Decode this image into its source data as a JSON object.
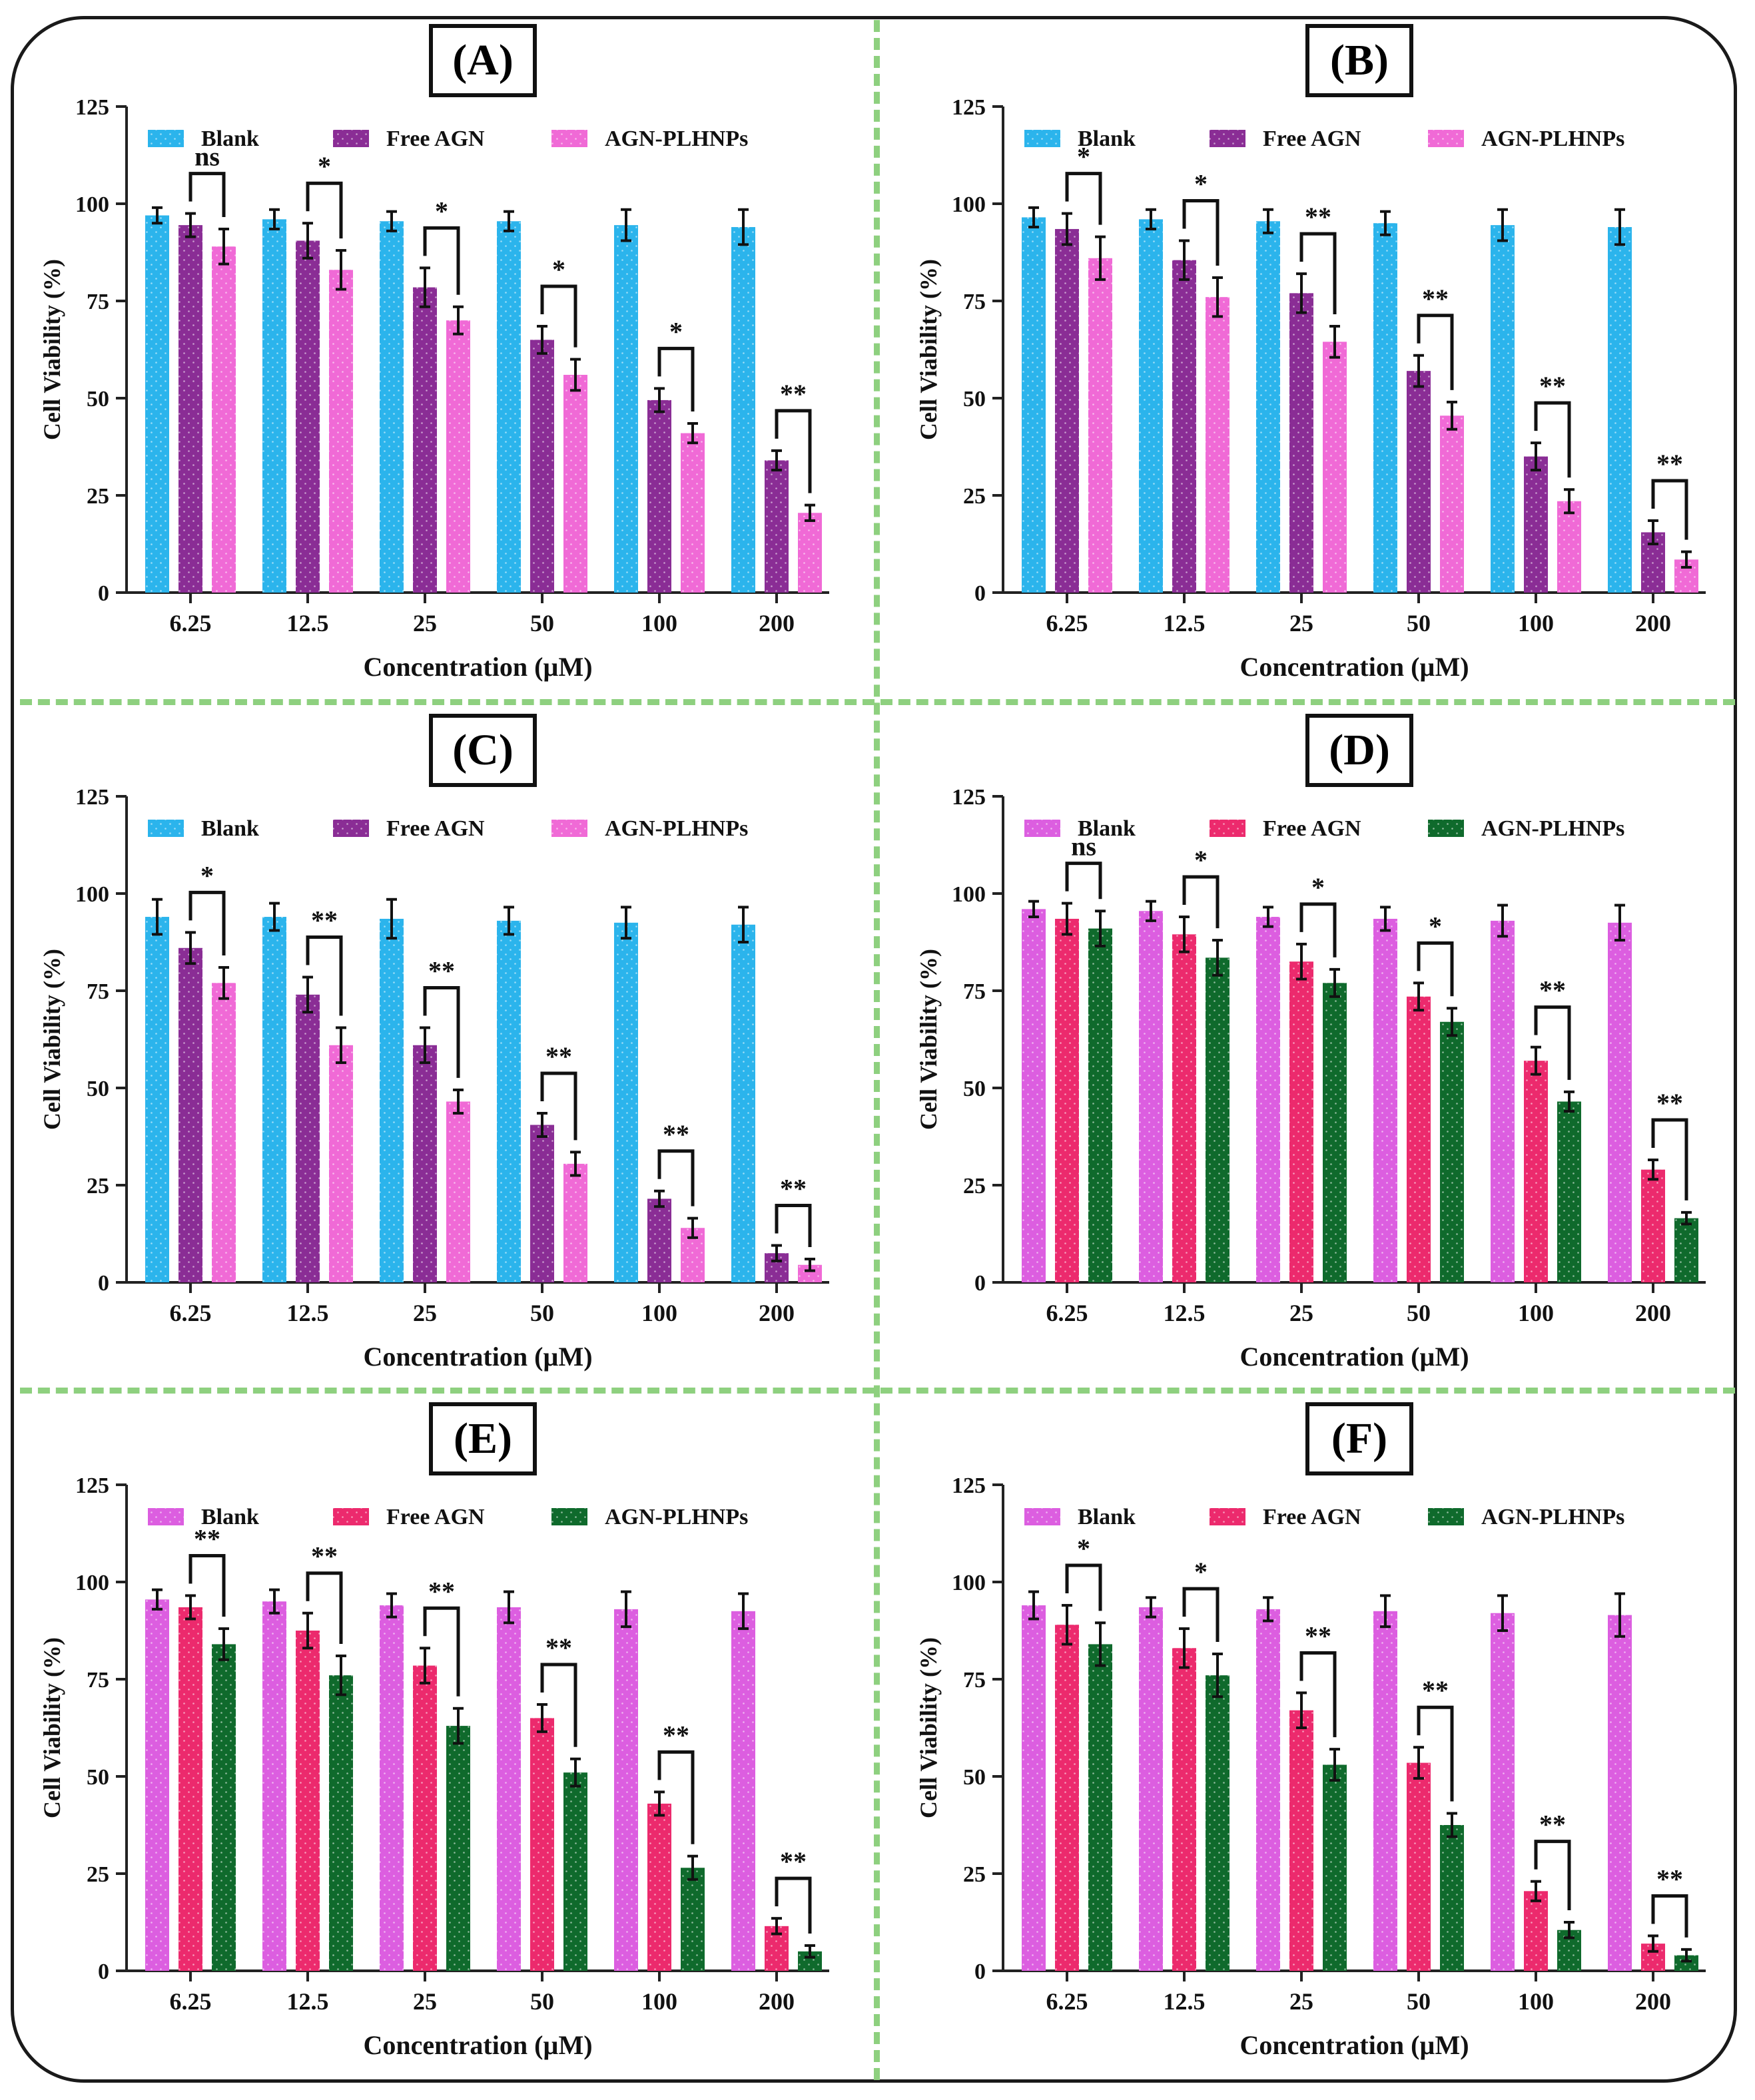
{
  "figure": {
    "colors": {
      "divider": "#8ed07f",
      "frame": "#1a1a1a",
      "blank_blue": "#2bb4ec",
      "free_purple": "#8a2d95",
      "plhnp_pink": "#f06ad6",
      "blank_magenta": "#dc5ee0",
      "free_red": "#ec2a6d",
      "plhnp_green": "#0f6a2c"
    }
  },
  "chart_data": [
    {
      "type": "bar",
      "panel": "(A)",
      "title": "",
      "xlabel": "Concentration (µM)",
      "ylabel": "Cell Viability (%)",
      "ylim": [
        0,
        125
      ],
      "yticks": [
        0,
        25,
        50,
        75,
        100,
        125
      ],
      "categories": [
        "6.25",
        "12.5",
        "25",
        "50",
        "100",
        "200"
      ],
      "legend_position": "top",
      "series": [
        {
          "name": "Blank",
          "color": "#2bb4ec",
          "values": [
            97,
            96,
            95.5,
            95.5,
            94.5,
            94
          ],
          "errors": [
            2,
            2.5,
            2.5,
            2.5,
            4,
            4.5
          ]
        },
        {
          "name": "Free AGN",
          "color": "#8a2d95",
          "values": [
            94.5,
            90.5,
            78.5,
            65,
            49.5,
            34
          ],
          "errors": [
            3,
            4.5,
            5,
            3.5,
            3,
            2.5
          ]
        },
        {
          "name": "AGN-PLHNPs",
          "color": "#f06ad6",
          "values": [
            89,
            83,
            70,
            56,
            41,
            20.5
          ],
          "errors": [
            4.5,
            5,
            3.5,
            4,
            2.5,
            2
          ]
        }
      ],
      "significance": [
        "ns",
        "*",
        "*",
        "*",
        "*",
        "**"
      ]
    },
    {
      "type": "bar",
      "panel": "(B)",
      "title": "",
      "xlabel": "Concentration (µM)",
      "ylabel": "Cell Viability (%)",
      "ylim": [
        0,
        125
      ],
      "yticks": [
        0,
        25,
        50,
        75,
        100,
        125
      ],
      "categories": [
        "6.25",
        "12.5",
        "25",
        "50",
        "100",
        "200"
      ],
      "legend_position": "top",
      "series": [
        {
          "name": "Blank",
          "color": "#2bb4ec",
          "values": [
            96.5,
            96,
            95.5,
            95,
            94.5,
            94
          ],
          "errors": [
            2.5,
            2.5,
            3,
            3,
            4,
            4.5
          ]
        },
        {
          "name": "Free AGN",
          "color": "#8a2d95",
          "values": [
            93.5,
            85.5,
            77,
            57,
            35,
            15.5
          ],
          "errors": [
            4,
            5,
            5,
            4,
            3.5,
            3
          ]
        },
        {
          "name": "AGN-PLHNPs",
          "color": "#f06ad6",
          "values": [
            86,
            76,
            64.5,
            45.5,
            23.5,
            8.5
          ],
          "errors": [
            5.5,
            5,
            4,
            3.5,
            3,
            2
          ]
        }
      ],
      "significance": [
        "*",
        "*",
        "**",
        "**",
        "**",
        "**"
      ]
    },
    {
      "type": "bar",
      "panel": "(C)",
      "title": "",
      "xlabel": "Concentration (µM)",
      "ylabel": "Cell Viability (%)",
      "ylim": [
        0,
        125
      ],
      "yticks": [
        0,
        25,
        50,
        75,
        100,
        125
      ],
      "categories": [
        "6.25",
        "12.5",
        "25",
        "50",
        "100",
        "200"
      ],
      "legend_position": "top",
      "series": [
        {
          "name": "Blank",
          "color": "#2bb4ec",
          "values": [
            94,
            94,
            93.5,
            93,
            92.5,
            92
          ],
          "errors": [
            4.5,
            3.5,
            5,
            3.5,
            4,
            4.5
          ]
        },
        {
          "name": "Free AGN",
          "color": "#8a2d95",
          "values": [
            86,
            74,
            61,
            40.5,
            21.5,
            7.5
          ],
          "errors": [
            4,
            4.5,
            4.5,
            3,
            2,
            2
          ]
        },
        {
          "name": "AGN-PLHNPs",
          "color": "#f06ad6",
          "values": [
            77,
            61,
            46.5,
            30.5,
            14,
            4.5
          ],
          "errors": [
            4,
            4.5,
            3,
            3,
            2.5,
            1.5
          ]
        }
      ],
      "significance": [
        "*",
        "**",
        "**",
        "**",
        "**",
        "**"
      ]
    },
    {
      "type": "bar",
      "panel": "(D)",
      "title": "",
      "xlabel": "Concentration (µM)",
      "ylabel": "Cell Viability (%)",
      "ylim": [
        0,
        125
      ],
      "yticks": [
        0,
        25,
        50,
        75,
        100,
        125
      ],
      "categories": [
        "6.25",
        "12.5",
        "25",
        "50",
        "100",
        "200"
      ],
      "legend_position": "top",
      "series": [
        {
          "name": "Blank",
          "color": "#dc5ee0",
          "values": [
            96,
            95.5,
            94,
            93.5,
            93,
            92.5
          ],
          "errors": [
            2,
            2.5,
            2.5,
            3,
            4,
            4.5
          ]
        },
        {
          "name": "Free AGN",
          "color": "#ec2a6d",
          "values": [
            93.5,
            89.5,
            82.5,
            73.5,
            57,
            29
          ],
          "errors": [
            4,
            4.5,
            4.5,
            3.5,
            3.5,
            2.5
          ]
        },
        {
          "name": "AGN-PLHNPs",
          "color": "#0f6a2c",
          "values": [
            91,
            83.5,
            77,
            67,
            46.5,
            16.5
          ],
          "errors": [
            4.5,
            4.5,
            3.5,
            3.5,
            2.5,
            1.5
          ]
        }
      ],
      "significance": [
        "ns",
        "*",
        "*",
        "*",
        "**",
        "**"
      ]
    },
    {
      "type": "bar",
      "panel": "(E)",
      "title": "",
      "xlabel": "Concentration (µM)",
      "ylabel": "Cell Viability (%)",
      "ylim": [
        0,
        125
      ],
      "yticks": [
        0,
        25,
        50,
        75,
        100,
        125
      ],
      "categories": [
        "6.25",
        "12.5",
        "25",
        "50",
        "100",
        "200"
      ],
      "legend_position": "top",
      "series": [
        {
          "name": "Blank",
          "color": "#dc5ee0",
          "values": [
            95.5,
            95,
            94,
            93.5,
            93,
            92.5
          ],
          "errors": [
            2.5,
            3,
            3,
            4,
            4.5,
            4.5
          ]
        },
        {
          "name": "Free AGN",
          "color": "#ec2a6d",
          "values": [
            93.5,
            87.5,
            78.5,
            65,
            43,
            11.5
          ],
          "errors": [
            3,
            4.5,
            4.5,
            3.5,
            3,
            2
          ]
        },
        {
          "name": "AGN-PLHNPs",
          "color": "#0f6a2c",
          "values": [
            84,
            76,
            63,
            51,
            26.5,
            5
          ],
          "errors": [
            4,
            5,
            4.5,
            3.5,
            3,
            1.5
          ]
        }
      ],
      "significance": [
        "**",
        "**",
        "**",
        "**",
        "**",
        "**"
      ]
    },
    {
      "type": "bar",
      "panel": "(F)",
      "title": "",
      "xlabel": "Concentration (µM)",
      "ylabel": "Cell Viability (%)",
      "ylim": [
        0,
        125
      ],
      "yticks": [
        0,
        25,
        50,
        75,
        100,
        125
      ],
      "categories": [
        "6.25",
        "12.5",
        "25",
        "50",
        "100",
        "200"
      ],
      "legend_position": "top",
      "series": [
        {
          "name": "Blank",
          "color": "#dc5ee0",
          "values": [
            94,
            93.5,
            93,
            92.5,
            92,
            91.5
          ],
          "errors": [
            3.5,
            2.5,
            3,
            4,
            4.5,
            5.5
          ]
        },
        {
          "name": "Free AGN",
          "color": "#ec2a6d",
          "values": [
            89,
            83,
            67,
            53.5,
            20.5,
            7
          ],
          "errors": [
            5,
            5,
            4.5,
            4,
            2.5,
            2
          ]
        },
        {
          "name": "AGN-PLHNPs",
          "color": "#0f6a2c",
          "values": [
            84,
            76,
            53,
            37.5,
            10.5,
            4
          ],
          "errors": [
            5.5,
            5.5,
            4,
            3,
            2,
            1.5
          ]
        }
      ],
      "significance": [
        "*",
        "*",
        "**",
        "**",
        "**",
        "**"
      ]
    }
  ]
}
